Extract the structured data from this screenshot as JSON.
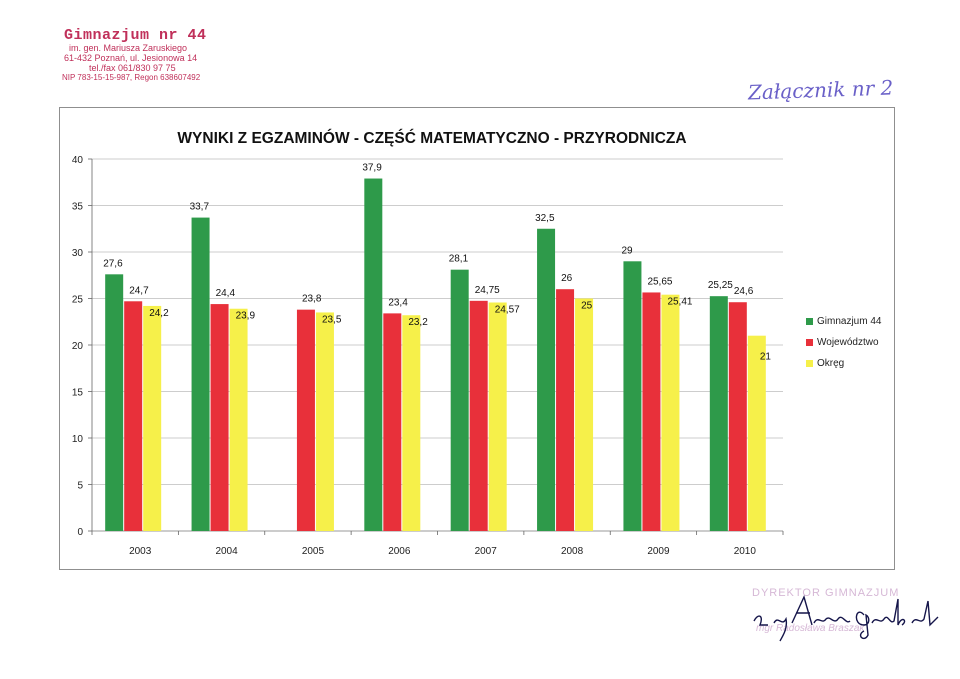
{
  "stamp": {
    "name": "Gimnazjum nr 44",
    "line1": "im. gen. Mariusza Zaruskiego",
    "line2": "61-432 Poznań, ul. Jesionowa 14",
    "line3": "tel./fax 061/830 97 75",
    "line4": "NIP 783-15-15-987, Regon 638607492"
  },
  "annotation": "Załącznik nr 2",
  "signature": {
    "title": "DYREKTOR GIMNAZJUM",
    "person": "mgr Radosława Braszak",
    "handwriting": "z up. Anna Grabowska"
  },
  "colors": {
    "green": "#2e9a4a",
    "red": "#e8303a",
    "yellow": "#f6f04a",
    "grid": "#bdbdbd",
    "axis": "#666666"
  },
  "chart_data": {
    "type": "bar",
    "title": "WYNIKI Z EGZAMINÓW - CZĘŚĆ MATEMATYCZNO - PRZYRODNICZA",
    "categories": [
      "2003",
      "2004",
      "2005",
      "2006",
      "2007",
      "2008",
      "2009",
      "2010"
    ],
    "series": [
      {
        "name": "Gimnazjum 44",
        "color": "#2e9a4a",
        "values": [
          27.6,
          33.7,
          null,
          37.9,
          28.1,
          32.5,
          29,
          25.25
        ],
        "labels": [
          "27,6",
          "33,7",
          "",
          "37,9",
          "28,1",
          "32,5",
          "29",
          "25,25"
        ]
      },
      {
        "name": "Województwo",
        "color": "#e8303a",
        "values": [
          24.7,
          24.4,
          23.8,
          23.4,
          24.75,
          26,
          25.65,
          24.6
        ],
        "labels": [
          "24,7",
          "24,4",
          "23,8",
          "23,4",
          "24,75",
          "26",
          "25,65",
          "24,6"
        ]
      },
      {
        "name": "Okręg",
        "color": "#f6f04a",
        "values": [
          24.2,
          23.9,
          23.5,
          23.2,
          24.57,
          25,
          25.41,
          21
        ],
        "labels": [
          "24,2",
          "23,9",
          "23,5",
          "23,2",
          "24,57",
          "25",
          "25,41",
          "21"
        ]
      }
    ],
    "ylim": [
      0,
      40
    ],
    "yticks": [
      "0",
      "5",
      "10",
      "15",
      "20",
      "25",
      "30",
      "35",
      "40"
    ],
    "grid": true,
    "legend_position": "right"
  }
}
